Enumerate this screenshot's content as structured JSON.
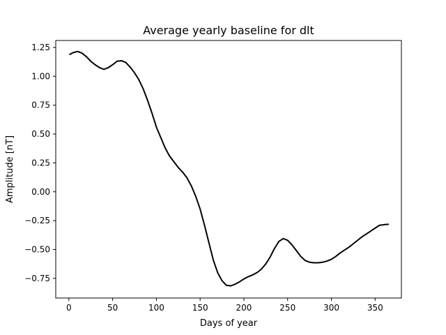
{
  "chart_data": {
    "type": "line",
    "title": "Average yearly baseline for dlt",
    "xlabel": "Days of year",
    "ylabel": "Amplitude [nT]",
    "xlim": [
      -15,
      380
    ],
    "ylim": [
      -0.92,
      1.31
    ],
    "x_ticks": [
      0,
      50,
      100,
      150,
      200,
      250,
      300,
      350
    ],
    "x_tick_labels": [
      "0",
      "50",
      "100",
      "150",
      "200",
      "250",
      "300",
      "350"
    ],
    "y_ticks": [
      1.25,
      1.0,
      0.75,
      0.5,
      0.25,
      0.0,
      -0.25,
      -0.5,
      -0.75
    ],
    "y_tick_labels": [
      "1.25",
      "1.00",
      "0.75",
      "0.50",
      "0.25",
      "0.00",
      "−0.25",
      "−0.50",
      "−0.75"
    ],
    "grid": false,
    "series": [
      {
        "name": "dlt",
        "color": "#000000",
        "x": [
          1,
          5,
          10,
          15,
          20,
          25,
          30,
          35,
          40,
          45,
          50,
          55,
          60,
          65,
          70,
          75,
          80,
          85,
          90,
          95,
          100,
          105,
          110,
          115,
          120,
          125,
          130,
          135,
          140,
          145,
          150,
          155,
          160,
          165,
          170,
          175,
          180,
          185,
          190,
          195,
          200,
          205,
          210,
          215,
          220,
          225,
          230,
          235,
          240,
          245,
          250,
          255,
          260,
          265,
          270,
          275,
          280,
          285,
          290,
          295,
          300,
          305,
          310,
          315,
          320,
          325,
          330,
          335,
          340,
          345,
          350,
          355,
          360,
          365
        ],
        "y": [
          1.19,
          1.205,
          1.215,
          1.2,
          1.17,
          1.13,
          1.1,
          1.075,
          1.06,
          1.075,
          1.1,
          1.13,
          1.135,
          1.12,
          1.08,
          1.03,
          0.97,
          0.89,
          0.79,
          0.68,
          0.56,
          0.47,
          0.38,
          0.31,
          0.26,
          0.21,
          0.17,
          0.12,
          0.05,
          -0.04,
          -0.15,
          -0.29,
          -0.44,
          -0.59,
          -0.7,
          -0.77,
          -0.81,
          -0.815,
          -0.8,
          -0.78,
          -0.755,
          -0.735,
          -0.72,
          -0.7,
          -0.67,
          -0.625,
          -0.565,
          -0.49,
          -0.43,
          -0.405,
          -0.42,
          -0.46,
          -0.51,
          -0.56,
          -0.595,
          -0.61,
          -0.615,
          -0.615,
          -0.61,
          -0.6,
          -0.585,
          -0.56,
          -0.53,
          -0.505,
          -0.48,
          -0.45,
          -0.42,
          -0.39,
          -0.365,
          -0.34,
          -0.315,
          -0.29,
          -0.285,
          -0.282
        ]
      }
    ]
  }
}
